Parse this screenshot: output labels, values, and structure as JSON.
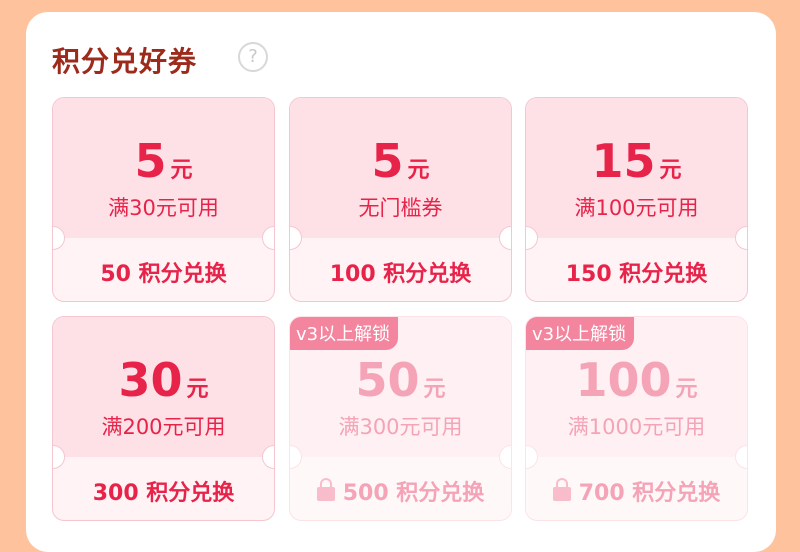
{
  "section": {
    "title": "积分兑好券",
    "help_icon": "question-circle-icon"
  },
  "colors": {
    "background": "#fec29c",
    "accent": "#e8234a",
    "title": "#9c2b1c",
    "locked": "#f5a3b6"
  },
  "coupons": [
    {
      "amount": "5",
      "unit": "元",
      "condition": "满30元可用",
      "cost": "50 积分兑换",
      "locked": false
    },
    {
      "amount": "5",
      "unit": "元",
      "condition": "无门槛券",
      "cost": "100 积分兑换",
      "locked": false
    },
    {
      "amount": "15",
      "unit": "元",
      "condition": "满100元可用",
      "cost": "150 积分兑换",
      "locked": false
    },
    {
      "amount": "30",
      "unit": "元",
      "condition": "满200元可用",
      "cost": "300 积分兑换",
      "locked": false
    },
    {
      "amount": "50",
      "unit": "元",
      "condition": "满300元可用",
      "cost": "500 积分兑换",
      "locked": true,
      "tag": "v3以上解锁"
    },
    {
      "amount": "100",
      "unit": "元",
      "condition": "满1000元可用",
      "cost": "700 积分兑换",
      "locked": true,
      "tag": "v3以上解锁"
    }
  ]
}
